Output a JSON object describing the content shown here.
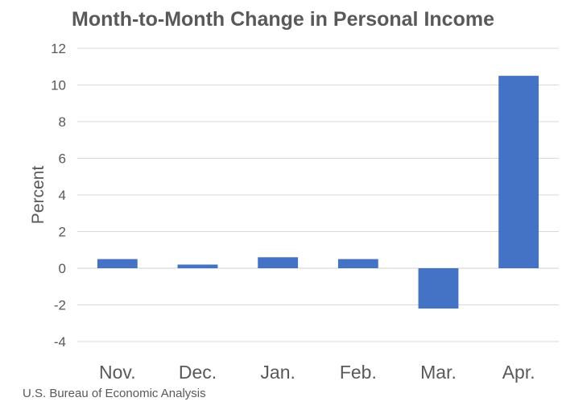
{
  "chart_data": {
    "type": "bar",
    "title": "Month-to-Month Change in Personal Income",
    "xlabel": "",
    "ylabel": "Percent",
    "categories": [
      "Nov.",
      "Dec.",
      "Jan.",
      "Feb.",
      "Mar.",
      "Apr."
    ],
    "values": [
      0.5,
      0.2,
      0.6,
      0.5,
      -2.2,
      10.5
    ],
    "ylim": [
      -4,
      12
    ],
    "yticks": [
      12,
      10,
      8,
      6,
      4,
      2,
      0,
      -2,
      -4
    ],
    "grid": true,
    "legend": "none",
    "bar_color": "#4472C4"
  },
  "source": "U.S. Bureau of Economic Analysis"
}
